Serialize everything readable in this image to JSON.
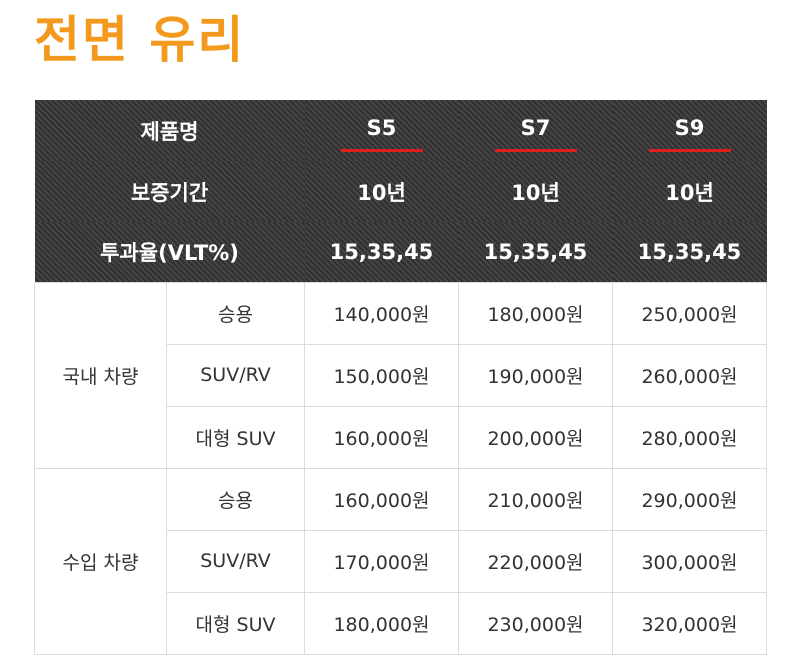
{
  "title": "전면 유리",
  "header": {
    "row_labels": [
      "제품명",
      "보증기간",
      "투과율(VLT%)"
    ],
    "models": [
      {
        "name": "S5",
        "warranty": "10년",
        "vlt": "15,35,45"
      },
      {
        "name": "S7",
        "warranty": "10년",
        "vlt": "15,35,45"
      },
      {
        "name": "S9",
        "warranty": "10년",
        "vlt": "15,35,45"
      }
    ],
    "underline_color": "#e01e1e"
  },
  "groups": [
    {
      "label": "국내 차량",
      "rows": [
        {
          "type": "승용",
          "prices": [
            "140,000원",
            "180,000원",
            "250,000원"
          ]
        },
        {
          "type": "SUV/RV",
          "prices": [
            "150,000원",
            "190,000원",
            "260,000원"
          ]
        },
        {
          "type": "대형 SUV",
          "prices": [
            "160,000원",
            "200,000원",
            "280,000원"
          ]
        }
      ]
    },
    {
      "label": "수입 차량",
      "rows": [
        {
          "type": "승용",
          "prices": [
            "160,000원",
            "210,000원",
            "290,000원"
          ]
        },
        {
          "type": "SUV/RV",
          "prices": [
            "170,000원",
            "220,000원",
            "300,000원"
          ]
        },
        {
          "type": "대형 SUV",
          "prices": [
            "180,000원",
            "230,000원",
            "320,000원"
          ]
        }
      ]
    }
  ],
  "colors": {
    "title": "#f39a1e",
    "header_bg": "#3b3b3b",
    "border": "#dcdcdc"
  }
}
